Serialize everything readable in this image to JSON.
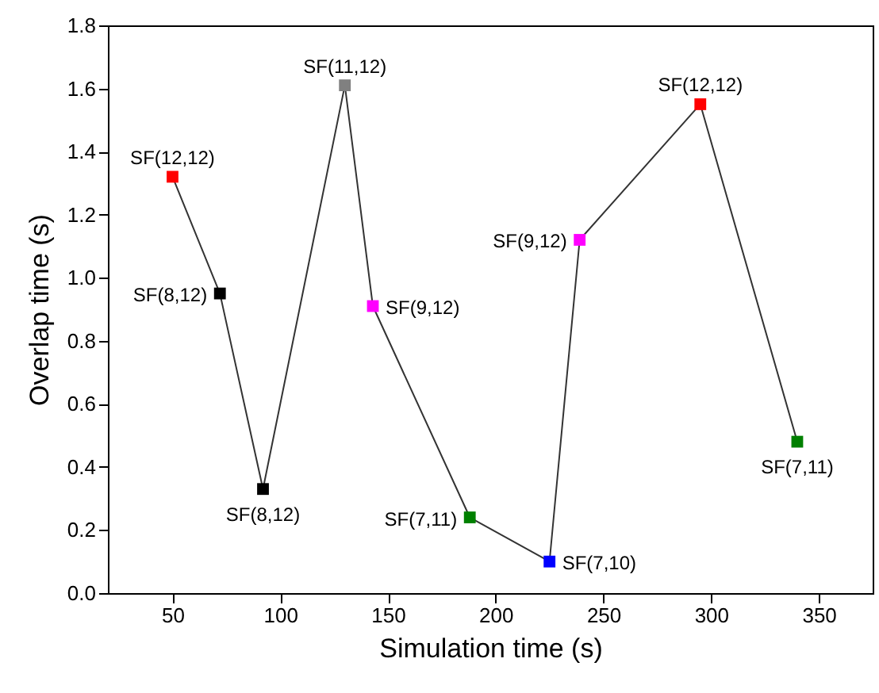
{
  "chart_data": {
    "type": "line",
    "xlabel": "Simulation time (s)",
    "ylabel": "Overlap time (s)",
    "x": [
      50,
      72,
      92,
      130,
      143,
      188,
      225,
      239,
      295,
      340
    ],
    "series": [
      {
        "color": "#333333",
        "colors": [
          "#ff0000",
          "#000000",
          "#000000",
          "#808080",
          "#ff00ff",
          "#008000",
          "#0000ff",
          "#ff00ff",
          "#ff0000",
          "#008000"
        ],
        "values": [
          1.32,
          0.95,
          0.33,
          1.61,
          0.91,
          0.24,
          0.1,
          1.12,
          1.55,
          0.48
        ],
        "value_labels": [
          "SF(12,12)",
          "SF(8,12)",
          "SF(8,12)",
          "SF(11,12)",
          "SF(9,12)",
          "SF(7,11)",
          "SF(7,10)",
          "SF(9,12)",
          "SF(12,12)",
          "SF(7,11)"
        ]
      }
    ],
    "xlim": [
      20,
      375
    ],
    "xticks": [
      50,
      100,
      150,
      200,
      250,
      300,
      350
    ],
    "ylim": [
      0,
      1.8
    ],
    "yticks": [
      {
        "value": 0,
        "label": "0.0"
      },
      0.2,
      0.4,
      0.6,
      0.8,
      {
        "value": 1,
        "label": "1.0"
      },
      1.2,
      1.4,
      1.6,
      1.8
    ],
    "grid": false,
    "marker": "square",
    "line_style": "solid"
  }
}
